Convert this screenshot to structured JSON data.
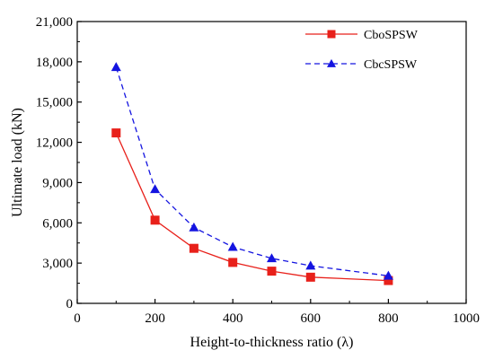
{
  "chart_data": {
    "type": "line",
    "title": "",
    "xlabel": "Height-to-thickness ratio (λ)",
    "ylabel": "Ultimate load (kN)",
    "xlim": [
      0,
      1000
    ],
    "ylim": [
      0,
      21000
    ],
    "x_ticks": [
      0,
      200,
      400,
      600,
      800,
      1000
    ],
    "x_tick_labels": [
      "0",
      "200",
      "400",
      "600",
      "800",
      "1000"
    ],
    "y_ticks": [
      0,
      3000,
      6000,
      9000,
      12000,
      15000,
      18000,
      21000
    ],
    "y_tick_labels": [
      "0",
      "3,000",
      "6,000",
      "9,000",
      "12,000",
      "15,000",
      "18,000",
      "21,000"
    ],
    "grid": false,
    "legend_position": "top-right",
    "x": [
      100,
      200,
      300,
      400,
      500,
      600,
      800
    ],
    "series": [
      {
        "name": "CboSPSW",
        "values": [
          12700,
          6200,
          4100,
          3050,
          2400,
          1950,
          1700
        ],
        "color": "#e8201a",
        "line_style": "solid",
        "marker": "square"
      },
      {
        "name": "CbcSPSW",
        "values": [
          17600,
          8500,
          5650,
          4200,
          3350,
          2800,
          2050
        ],
        "color": "#1414e0",
        "line_style": "dashed",
        "marker": "triangle"
      }
    ]
  }
}
